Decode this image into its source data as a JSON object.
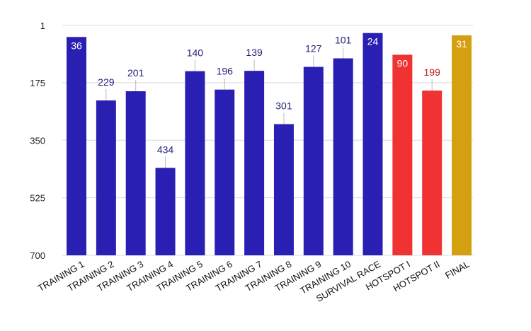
{
  "chart_data": {
    "type": "bar",
    "title": "",
    "xlabel": "",
    "ylabel": "",
    "y_axis": {
      "reversed": true,
      "range": [
        1,
        700
      ],
      "ticks": [
        1,
        175,
        350,
        525,
        700
      ]
    },
    "grid": "horizontal",
    "legend": "none",
    "categories": [
      "TRAINING 1",
      "TRAINING 2",
      "TRAINING 3",
      "TRAINING 4",
      "TRAINING 5",
      "TRAINING 6",
      "TRAINING 7",
      "TRAINING 8",
      "TRAINING 9",
      "TRAINING 10",
      "SURVIVAL RACE",
      "HOTSPOT I",
      "HOTSPOT II",
      "FINAL"
    ],
    "values": [
      36,
      229,
      201,
      434,
      140,
      196,
      139,
      301,
      127,
      101,
      24,
      90,
      199,
      31
    ],
    "bar_colors": [
      "#2a1fb3",
      "#2a1fb3",
      "#2a1fb3",
      "#2a1fb3",
      "#2a1fb3",
      "#2a1fb3",
      "#2a1fb3",
      "#2a1fb3",
      "#2a1fb3",
      "#2a1fb3",
      "#2a1fb3",
      "#f03232",
      "#f03232",
      "#d4a012"
    ]
  },
  "colors": {
    "gridline": "#d9d9d9",
    "label_dark": "#1f1f7a",
    "label_light": "#ffffff",
    "label_red": "#c02222"
  }
}
